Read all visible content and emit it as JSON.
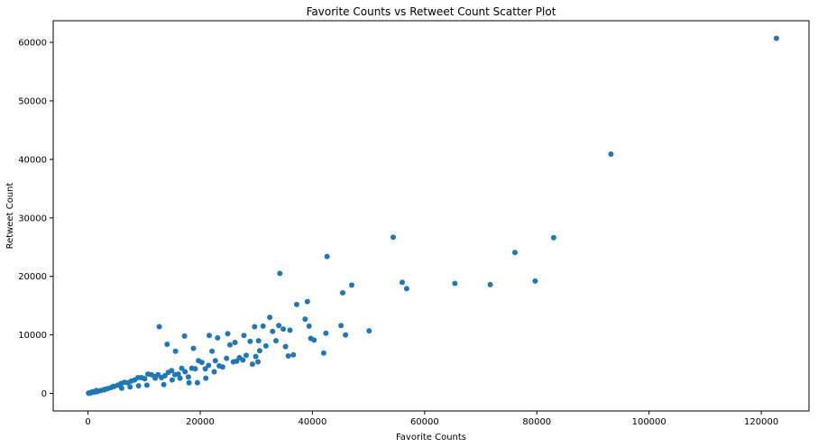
{
  "chart_data": {
    "type": "scatter",
    "title": "Favorite Counts vs Retweet Count Scatter Plot",
    "xlabel": "Favorite Counts",
    "ylabel": "Retweet Count",
    "xlim": [
      -6200,
      128500
    ],
    "ylim": [
      -3000,
      63700
    ],
    "xticks": [
      0,
      20000,
      40000,
      60000,
      80000,
      100000,
      120000
    ],
    "xtick_labels": [
      "0",
      "20000",
      "40000",
      "60000",
      "80000",
      "100000",
      "120000"
    ],
    "yticks": [
      0,
      10000,
      20000,
      30000,
      40000,
      50000,
      60000
    ],
    "ytick_labels": [
      "0",
      "10000",
      "20000",
      "30000",
      "40000",
      "50000",
      "60000"
    ],
    "grid": false,
    "legend": "none",
    "marker_color": "#1f77b4",
    "x": [
      122700,
      93200,
      83000,
      79700,
      76100,
      71700,
      65400,
      56800,
      56000,
      54400,
      50100,
      47000,
      45900,
      45400,
      45100,
      42600,
      42400,
      42000,
      40300,
      39700,
      39400,
      39100,
      38700,
      37200,
      36600,
      36000,
      35700,
      35200,
      34800,
      34200,
      34000,
      33500,
      32400,
      31700,
      31200,
      30600,
      30300,
      29900,
      29300,
      28200,
      27600,
      27000,
      26500,
      25900,
      25300,
      24700,
      24000,
      23400,
      22700,
      22100,
      21500,
      20900,
      20300,
      19700,
      19100,
      18500,
      17900,
      17300,
      16700,
      16100,
      15500,
      14900,
      14300,
      13700,
      13100,
      12500,
      11900,
      11300,
      10700,
      10100,
      9500,
      8900,
      8300,
      7700,
      7100,
      6500,
      5900,
      5300,
      4700,
      4100,
      3500,
      2900,
      2300,
      1700,
      1100,
      500,
      12700,
      14100,
      15600,
      17200,
      18800,
      21600,
      23100,
      24900,
      26200,
      27800,
      28900,
      29700,
      30400,
      32900,
      21000,
      22500,
      19500,
      18000,
      16400,
      15000,
      13500,
      12000,
      10500,
      9000,
      7500,
      6000,
      4500,
      3000,
      1500,
      800,
      300,
      200,
      100
    ],
    "y": [
      60700,
      40900,
      26600,
      19200,
      24100,
      18600,
      18800,
      17900,
      19000,
      26700,
      10700,
      18500,
      10000,
      17200,
      11600,
      23400,
      10300,
      6900,
      9100,
      9400,
      11500,
      15700,
      12700,
      15200,
      6600,
      10800,
      6400,
      8000,
      11000,
      20500,
      11600,
      9000,
      13000,
      8100,
      11500,
      7300,
      5400,
      6300,
      5000,
      6500,
      5700,
      6100,
      5500,
      5400,
      8300,
      6000,
      4500,
      4700,
      5600,
      7200,
      4800,
      4200,
      5300,
      5600,
      4200,
      4300,
      2800,
      3700,
      4300,
      3300,
      3200,
      3900,
      3600,
      3000,
      2700,
      3200,
      2900,
      3200,
      3300,
      2500,
      2700,
      2700,
      2300,
      2100,
      1800,
      1900,
      1700,
      1400,
      1200,
      1000,
      800,
      600,
      500,
      300,
      200,
      100,
      11400,
      8400,
      7200,
      9800,
      7700,
      9900,
      9500,
      10200,
      8700,
      9900,
      8900,
      11400,
      9000,
      10600,
      2600,
      3700,
      1800,
      1800,
      2600,
      2300,
      1500,
      2600,
      1400,
      1300,
      1100,
      900,
      1200,
      700,
      500,
      300,
      50,
      50,
      50
    ]
  }
}
